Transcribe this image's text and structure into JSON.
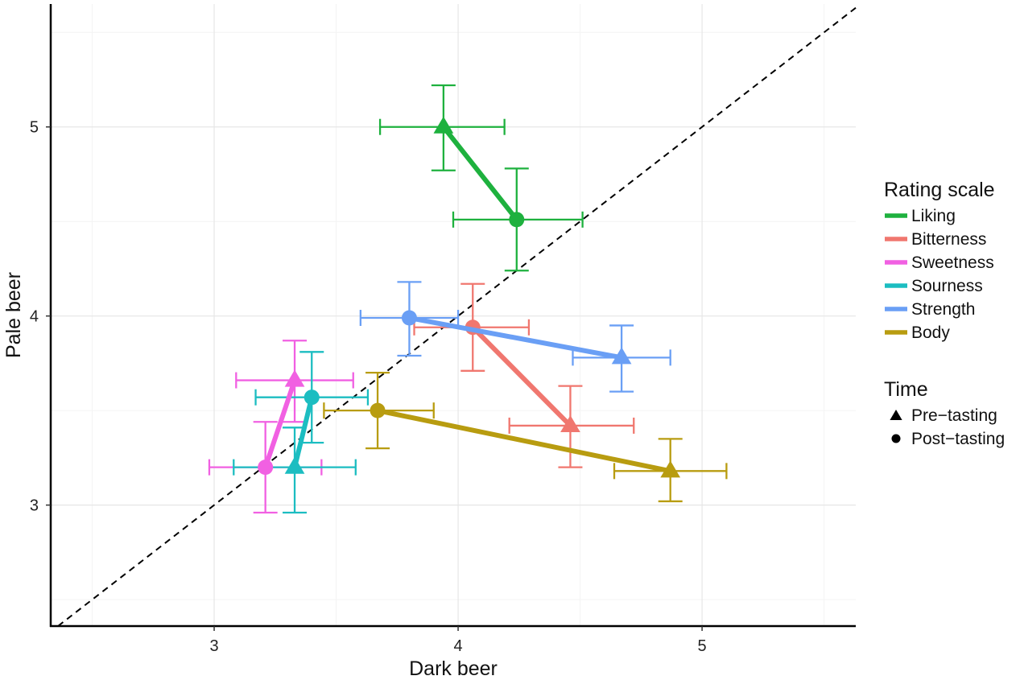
{
  "chart_data": {
    "type": "scatter",
    "title": "",
    "xlabel": "Dark beer",
    "ylabel": "Pale beer",
    "xlim": [
      2.33,
      5.63
    ],
    "ylim": [
      2.36,
      5.65
    ],
    "xticks": [
      3,
      4,
      5
    ],
    "yticks": [
      3,
      4,
      5
    ],
    "xtick_labels": [
      "3",
      "4",
      "5"
    ],
    "ytick_labels": [
      "3",
      "4",
      "5"
    ],
    "grid": true,
    "reference_line": "y = x (dashed)",
    "legend": {
      "placement": "right",
      "color_title": "Rating scale",
      "shape_title": "Time",
      "shape_entries": [
        {
          "label": "Pre−tasting",
          "shape": "triangle"
        },
        {
          "label": "Post−tasting",
          "shape": "circle"
        }
      ]
    },
    "series": [
      {
        "name": "Liking",
        "color": "#1EB13E",
        "pre": {
          "x": 3.94,
          "y": 5.0,
          "x_err": [
            3.68,
            4.19
          ],
          "y_err": [
            4.77,
            5.22
          ]
        },
        "post": {
          "x": 4.24,
          "y": 4.51,
          "x_err": [
            3.98,
            4.51
          ],
          "y_err": [
            4.24,
            4.78
          ]
        }
      },
      {
        "name": "Bitterness",
        "color": "#F0776F",
        "pre": {
          "x": 4.46,
          "y": 3.42,
          "x_err": [
            4.21,
            4.72
          ],
          "y_err": [
            3.2,
            3.63
          ]
        },
        "post": {
          "x": 4.06,
          "y": 3.94,
          "x_err": [
            3.82,
            4.29
          ],
          "y_err": [
            3.71,
            4.17
          ]
        }
      },
      {
        "name": "Sweetness",
        "color": "#F160E2",
        "pre": {
          "x": 3.33,
          "y": 3.66,
          "x_err": [
            3.09,
            3.57
          ],
          "y_err": [
            3.44,
            3.87
          ]
        },
        "post": {
          "x": 3.21,
          "y": 3.2,
          "x_err": [
            2.98,
            3.44
          ],
          "y_err": [
            2.96,
            3.44
          ]
        }
      },
      {
        "name": "Sourness",
        "color": "#1CBDC1",
        "pre": {
          "x": 3.33,
          "y": 3.2,
          "x_err": [
            3.08,
            3.58
          ],
          "y_err": [
            2.96,
            3.41
          ]
        },
        "post": {
          "x": 3.4,
          "y": 3.57,
          "x_err": [
            3.17,
            3.63
          ],
          "y_err": [
            3.33,
            3.81
          ]
        }
      },
      {
        "name": "Strength",
        "color": "#6A9FF5",
        "pre": {
          "x": 4.67,
          "y": 3.78,
          "x_err": [
            4.47,
            4.87
          ],
          "y_err": [
            3.6,
            3.95
          ]
        },
        "post": {
          "x": 3.8,
          "y": 3.99,
          "x_err": [
            3.6,
            4.0
          ],
          "y_err": [
            3.79,
            4.18
          ]
        }
      },
      {
        "name": "Body",
        "color": "#B89C10",
        "pre": {
          "x": 4.87,
          "y": 3.18,
          "x_err": [
            4.64,
            5.1
          ],
          "y_err": [
            3.02,
            3.35
          ]
        },
        "post": {
          "x": 3.67,
          "y": 3.5,
          "x_err": [
            3.45,
            3.9
          ],
          "y_err": [
            3.3,
            3.7
          ]
        }
      }
    ]
  }
}
